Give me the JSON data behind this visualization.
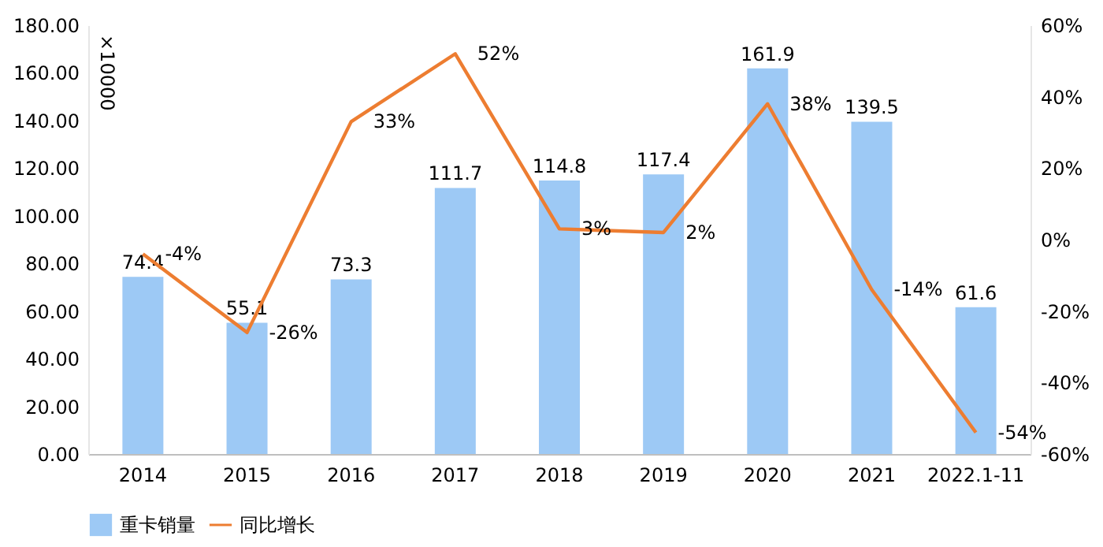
{
  "chart_data": {
    "type": "bar",
    "categories": [
      "2014",
      "2015",
      "2016",
      "2017",
      "2018",
      "2019",
      "2020",
      "2021",
      "2022.1-11"
    ],
    "series": [
      {
        "name": "重卡销量",
        "color": "#9dc9f5",
        "values": [
          74.4,
          55.1,
          73.3,
          111.7,
          114.8,
          117.4,
          161.9,
          139.5,
          61.6
        ],
        "value_labels": [
          "74.4",
          "55.1",
          "73.3",
          "111.7",
          "114.8",
          "117.4",
          "161.9",
          "139.5",
          "61.6"
        ]
      },
      {
        "name": "同比增长",
        "type": "line",
        "axis": "y2",
        "color": "#ed7d31",
        "values": [
          -4,
          -26,
          33,
          52,
          3,
          2,
          38,
          -14,
          -54
        ],
        "value_labels": [
          "-4%",
          "-26%",
          "33%",
          "52%",
          "3%",
          "2%",
          "38%",
          "-14%",
          "-54%"
        ]
      }
    ],
    "ylim": [
      0,
      180
    ],
    "yticks": [
      {
        "value": 0,
        "label": "0.00"
      },
      {
        "value": 20,
        "label": "20.00"
      },
      {
        "value": 40,
        "label": "40.00"
      },
      {
        "value": 60,
        "label": "60.00"
      },
      {
        "value": 80,
        "label": "80.00"
      },
      {
        "value": 100,
        "label": "100.00"
      },
      {
        "value": 120,
        "label": "120.00"
      },
      {
        "value": 140,
        "label": "140.00"
      },
      {
        "value": 160,
        "label": "160.00"
      },
      {
        "value": 180,
        "label": "180.00"
      }
    ],
    "y2lim": [
      -60,
      60
    ],
    "y2ticks": [
      {
        "value": -60,
        "label": "-60%"
      },
      {
        "value": -40,
        "label": "-40%"
      },
      {
        "value": -20,
        "label": "-20%"
      },
      {
        "value": 0,
        "label": "0%"
      },
      {
        "value": 20,
        "label": "20%"
      },
      {
        "value": 40,
        "label": "40%"
      },
      {
        "value": 60,
        "label": "60%"
      }
    ],
    "annotations": [
      "×10000"
    ],
    "legend": "bottom",
    "grid": false,
    "marker": "none",
    "line_style": "solid"
  }
}
